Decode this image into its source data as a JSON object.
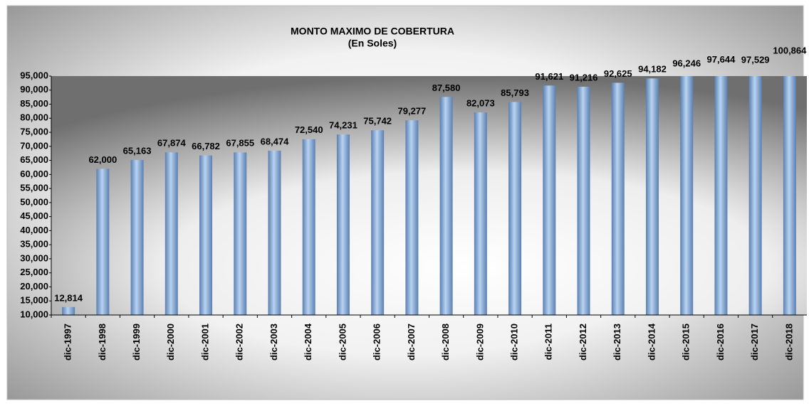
{
  "chart_data": {
    "type": "bar",
    "title": "MONTO MAXIMO DE COBERTURA",
    "subtitle": "(En  Soles)",
    "categories": [
      "dic-1997",
      "dic-1998",
      "dic-1999",
      "dic-2000",
      "dic-2001",
      "dic-2002",
      "dic-2003",
      "dic-2004",
      "dic-2005",
      "dic-2006",
      "dic-2007",
      "dic-2008",
      "dic-2009",
      "dic-2010",
      "dic-2011",
      "dic-2012",
      "dic-2013",
      "dic-2014",
      "dic-2015",
      "dic-2016",
      "dic-2017",
      "dic-2018"
    ],
    "values": [
      12814,
      62000,
      65163,
      67874,
      66782,
      67855,
      68474,
      72540,
      74231,
      75742,
      79277,
      87580,
      82073,
      85793,
      91621,
      91216,
      92625,
      94182,
      96246,
      97644,
      97529,
      100864
    ],
    "value_labels": [
      "12,814",
      "62,000",
      "65,163",
      "67,874",
      "66,782",
      "67,855",
      "68,474",
      "72,540",
      "74,231",
      "75,742",
      "79,277",
      "87,580",
      "82,073",
      "85,793",
      "91,621",
      "91,216",
      "92,625",
      "94,182",
      "96,246",
      "97,644",
      "97,529",
      "100,864"
    ],
    "color": "#8db4e2",
    "ylim": [
      10000,
      95000
    ],
    "yticks": [
      {
        "value": 10000,
        "label": "10,000"
      },
      {
        "value": 15000,
        "label": "15,000"
      },
      {
        "value": 20000,
        "label": "20,000"
      },
      {
        "value": 25000,
        "label": "25,000"
      },
      {
        "value": 30000,
        "label": "30,000"
      },
      {
        "value": 35000,
        "label": "35,000"
      },
      {
        "value": 40000,
        "label": "40,000"
      },
      {
        "value": 45000,
        "label": "45,000"
      },
      {
        "value": 50000,
        "label": "50,000"
      },
      {
        "value": 55000,
        "label": "55,000"
      },
      {
        "value": 60000,
        "label": "60,000"
      },
      {
        "value": 65000,
        "label": "65,000"
      },
      {
        "value": 70000,
        "label": "70,000"
      },
      {
        "value": 75000,
        "label": "75,000"
      },
      {
        "value": 80000,
        "label": "80,000"
      },
      {
        "value": 85000,
        "label": "85,000"
      },
      {
        "value": 90000,
        "label": "90,000"
      },
      {
        "value": 95000,
        "label": "95,000"
      }
    ]
  }
}
